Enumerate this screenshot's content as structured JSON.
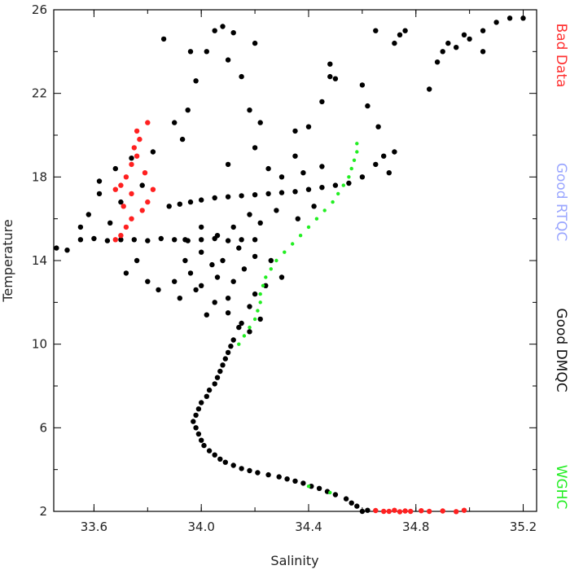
{
  "chart_data": {
    "type": "scatter",
    "title": "",
    "xlabel": "Salinity",
    "ylabel": "Temperature",
    "xlim": [
      33.45,
      35.25
    ],
    "ylim": [
      2,
      26
    ],
    "xticks": [
      33.6,
      34.0,
      34.4,
      34.8,
      35.2
    ],
    "xtick_labels": [
      "33.6",
      "34.0",
      "34.4",
      "34.8",
      "35.2"
    ],
    "yticks": [
      2,
      6,
      10,
      14,
      18,
      22,
      26
    ],
    "ytick_labels": [
      "2",
      "6",
      "10",
      "14",
      "18",
      "22",
      "26"
    ],
    "grid": false,
    "legend_placement": "right, vertical",
    "legend": [
      {
        "label": "Bad Data",
        "color": "#ff3030"
      },
      {
        "label": "Good RTQC",
        "color": "#9aa6ff"
      },
      {
        "label": "Good DMQC",
        "color": "#111111"
      },
      {
        "label": "WGHC",
        "color": "#22ee22"
      }
    ],
    "series": [
      {
        "name": "Good DMQC",
        "color": "#000000",
        "points": [
          [
            34.6,
            2.0
          ],
          [
            34.56,
            2.4
          ],
          [
            34.5,
            2.8
          ],
          [
            34.44,
            3.1
          ],
          [
            34.38,
            3.35
          ],
          [
            34.32,
            3.55
          ],
          [
            34.25,
            3.75
          ],
          [
            34.18,
            3.95
          ],
          [
            34.12,
            4.2
          ],
          [
            34.07,
            4.5
          ],
          [
            34.03,
            4.9
          ],
          [
            34.0,
            5.4
          ],
          [
            33.98,
            6.0
          ],
          [
            33.98,
            6.6
          ],
          [
            34.0,
            7.2
          ],
          [
            34.03,
            7.8
          ],
          [
            34.06,
            8.4
          ],
          [
            34.08,
            9.0
          ],
          [
            34.1,
            9.6
          ],
          [
            34.12,
            10.2
          ],
          [
            34.14,
            10.8
          ],
          [
            34.62,
            2.05
          ],
          [
            34.58,
            2.25
          ],
          [
            34.54,
            2.6
          ],
          [
            34.47,
            2.95
          ],
          [
            34.41,
            3.2
          ],
          [
            34.35,
            3.45
          ],
          [
            34.29,
            3.65
          ],
          [
            34.21,
            3.85
          ],
          [
            34.15,
            4.05
          ],
          [
            34.09,
            4.35
          ],
          [
            34.05,
            4.7
          ],
          [
            34.01,
            5.15
          ],
          [
            33.99,
            5.7
          ],
          [
            33.97,
            6.3
          ],
          [
            33.99,
            6.9
          ],
          [
            34.02,
            7.5
          ],
          [
            34.05,
            8.1
          ],
          [
            34.07,
            8.7
          ],
          [
            34.09,
            9.3
          ],
          [
            34.11,
            9.9
          ],
          [
            34.15,
            11.0
          ],
          [
            34.1,
            11.5
          ],
          [
            34.05,
            12.0
          ],
          [
            34.18,
            11.8
          ],
          [
            34.2,
            12.4
          ],
          [
            34.0,
            12.8
          ],
          [
            34.06,
            13.2
          ],
          [
            34.12,
            13.0
          ],
          [
            34.16,
            13.6
          ],
          [
            33.96,
            13.4
          ],
          [
            33.92,
            12.2
          ],
          [
            34.02,
            11.4
          ],
          [
            34.22,
            11.2
          ],
          [
            34.08,
            14.0
          ],
          [
            34.0,
            14.4
          ],
          [
            33.94,
            14.0
          ],
          [
            34.14,
            14.6
          ],
          [
            34.2,
            14.2
          ],
          [
            34.04,
            13.8
          ],
          [
            33.98,
            12.6
          ],
          [
            34.1,
            12.2
          ],
          [
            34.24,
            12.8
          ],
          [
            34.18,
            10.6
          ],
          [
            33.9,
            13.0
          ],
          [
            34.26,
            14.0
          ],
          [
            34.3,
            13.2
          ],
          [
            34.12,
            15.6
          ],
          [
            34.06,
            15.2
          ],
          [
            34.22,
            15.8
          ],
          [
            34.0,
            15.6
          ],
          [
            33.94,
            15.0
          ],
          [
            33.55,
            15.0
          ],
          [
            33.6,
            15.05
          ],
          [
            33.65,
            14.95
          ],
          [
            33.7,
            15.0
          ],
          [
            33.75,
            15.0
          ],
          [
            33.8,
            14.95
          ],
          [
            33.85,
            15.05
          ],
          [
            33.9,
            15.0
          ],
          [
            33.95,
            14.95
          ],
          [
            34.0,
            15.0
          ],
          [
            34.05,
            15.05
          ],
          [
            34.1,
            14.95
          ],
          [
            34.15,
            15.0
          ],
          [
            34.2,
            15.0
          ],
          [
            33.88,
            16.6
          ],
          [
            33.92,
            16.7
          ],
          [
            33.96,
            16.8
          ],
          [
            34.0,
            16.9
          ],
          [
            34.05,
            17.0
          ],
          [
            34.1,
            17.05
          ],
          [
            34.15,
            17.1
          ],
          [
            34.2,
            17.15
          ],
          [
            34.25,
            17.2
          ],
          [
            34.3,
            17.25
          ],
          [
            34.35,
            17.3
          ],
          [
            34.4,
            17.4
          ],
          [
            34.45,
            17.5
          ],
          [
            34.5,
            17.6
          ],
          [
            34.55,
            17.7
          ],
          [
            34.25,
            18.4
          ],
          [
            34.3,
            18.0
          ],
          [
            34.38,
            18.2
          ],
          [
            34.45,
            18.5
          ],
          [
            34.6,
            18.0
          ],
          [
            34.65,
            18.6
          ],
          [
            34.7,
            18.2
          ],
          [
            34.35,
            19.0
          ],
          [
            34.2,
            19.4
          ],
          [
            34.1,
            18.6
          ],
          [
            34.28,
            16.4
          ],
          [
            34.36,
            16.0
          ],
          [
            34.42,
            16.6
          ],
          [
            34.18,
            16.2
          ],
          [
            33.68,
            18.4
          ],
          [
            33.62,
            17.2
          ],
          [
            33.7,
            16.8
          ],
          [
            33.74,
            18.9
          ],
          [
            33.66,
            15.8
          ],
          [
            33.58,
            16.2
          ],
          [
            33.78,
            17.6
          ],
          [
            33.82,
            19.2
          ],
          [
            33.72,
            13.4
          ],
          [
            33.8,
            13.0
          ],
          [
            33.84,
            12.6
          ],
          [
            33.76,
            14.0
          ],
          [
            33.5,
            14.5
          ],
          [
            33.46,
            14.6
          ],
          [
            33.55,
            15.6
          ],
          [
            33.62,
            17.8
          ],
          [
            33.9,
            20.6
          ],
          [
            33.95,
            21.2
          ],
          [
            33.98,
            22.6
          ],
          [
            33.93,
            19.8
          ],
          [
            33.86,
            24.6
          ],
          [
            33.96,
            24.0
          ],
          [
            34.02,
            24.0
          ],
          [
            34.05,
            25.0
          ],
          [
            34.08,
            25.2
          ],
          [
            34.12,
            24.9
          ],
          [
            34.1,
            23.6
          ],
          [
            34.15,
            22.8
          ],
          [
            34.18,
            21.2
          ],
          [
            34.22,
            20.6
          ],
          [
            34.35,
            20.2
          ],
          [
            34.4,
            20.4
          ],
          [
            34.45,
            21.6
          ],
          [
            34.48,
            22.8
          ],
          [
            34.5,
            22.7
          ],
          [
            34.48,
            23.4
          ],
          [
            34.2,
            24.4
          ],
          [
            34.6,
            22.4
          ],
          [
            34.62,
            21.4
          ],
          [
            34.66,
            20.4
          ],
          [
            34.68,
            19.0
          ],
          [
            34.72,
            19.2
          ],
          [
            34.74,
            24.8
          ],
          [
            34.76,
            25.0
          ],
          [
            34.88,
            23.5
          ],
          [
            34.9,
            24.0
          ],
          [
            34.92,
            24.4
          ],
          [
            34.95,
            24.2
          ],
          [
            34.98,
            24.8
          ],
          [
            35.0,
            24.6
          ],
          [
            35.05,
            25.0
          ],
          [
            35.1,
            25.4
          ],
          [
            35.15,
            25.6
          ],
          [
            35.2,
            25.6
          ],
          [
            34.65,
            25.0
          ],
          [
            34.72,
            24.4
          ],
          [
            35.05,
            24.0
          ],
          [
            34.85,
            22.2
          ]
        ]
      },
      {
        "name": "WGHC",
        "color": "#22ee22",
        "points": [
          [
            34.4,
            3.2
          ],
          [
            34.48,
            2.9
          ],
          [
            34.14,
            10.0
          ],
          [
            34.16,
            10.4
          ],
          [
            34.18,
            10.8
          ],
          [
            34.2,
            11.2
          ],
          [
            34.21,
            11.6
          ],
          [
            34.22,
            12.0
          ],
          [
            34.22,
            12.4
          ],
          [
            34.23,
            12.8
          ],
          [
            34.24,
            13.2
          ],
          [
            34.26,
            13.6
          ],
          [
            34.28,
            14.0
          ],
          [
            34.31,
            14.4
          ],
          [
            34.34,
            14.8
          ],
          [
            34.37,
            15.2
          ],
          [
            34.4,
            15.6
          ],
          [
            34.43,
            16.0
          ],
          [
            34.46,
            16.4
          ],
          [
            34.49,
            16.8
          ],
          [
            34.51,
            17.2
          ],
          [
            34.53,
            17.6
          ],
          [
            34.55,
            18.0
          ],
          [
            34.56,
            18.4
          ],
          [
            34.57,
            18.8
          ],
          [
            34.58,
            19.2
          ],
          [
            34.58,
            19.6
          ]
        ]
      },
      {
        "name": "Bad Data",
        "color": "#ff2020",
        "points": [
          [
            33.76,
            20.2
          ],
          [
            33.77,
            19.8
          ],
          [
            33.75,
            19.4
          ],
          [
            33.76,
            19.0
          ],
          [
            33.74,
            18.6
          ],
          [
            33.72,
            18.0
          ],
          [
            33.7,
            17.6
          ],
          [
            33.68,
            17.4
          ],
          [
            33.74,
            17.2
          ],
          [
            33.8,
            16.8
          ],
          [
            33.82,
            17.4
          ],
          [
            33.78,
            16.4
          ],
          [
            33.74,
            16.0
          ],
          [
            33.72,
            15.6
          ],
          [
            33.7,
            15.2
          ],
          [
            33.68,
            15.0
          ],
          [
            33.8,
            20.6
          ],
          [
            33.71,
            16.6
          ],
          [
            33.79,
            18.2
          ],
          [
            34.7,
            2.0
          ],
          [
            34.72,
            2.05
          ],
          [
            34.74,
            1.98
          ],
          [
            34.76,
            2.02
          ],
          [
            34.78,
            2.0
          ],
          [
            34.82,
            2.03
          ],
          [
            34.85,
            2.0
          ],
          [
            34.9,
            2.02
          ],
          [
            34.95,
            1.99
          ],
          [
            34.98,
            2.05
          ],
          [
            34.68,
            2.0
          ],
          [
            34.65,
            2.04
          ]
        ]
      }
    ]
  }
}
